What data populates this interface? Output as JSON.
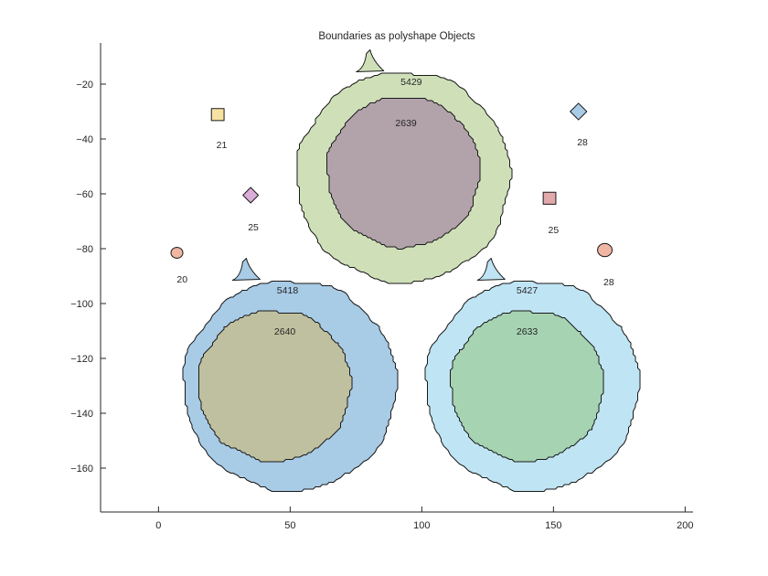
{
  "chart_data": {
    "type": "polygon-regions",
    "title": "Boundaries as polyshape Objects",
    "xlabel": "",
    "ylabel": "",
    "xlim": [
      -22,
      203
    ],
    "ylim": [
      -176,
      -5
    ],
    "xticks": [
      0,
      50,
      100,
      150,
      200
    ],
    "yticks": [
      -160,
      -140,
      -120,
      -100,
      -80,
      -60,
      -40,
      -20
    ],
    "grid": false,
    "colors": {
      "light_green": "#cfe0b9",
      "mauve": "#b2a2aa",
      "steel_blue": "#a8cbe6",
      "olive_tan": "#bfc09f",
      "light_cyan": "#bfe4f4",
      "green": "#a6d3b2",
      "pale_yellow": "#f8e2a3",
      "lilac": "#d9acd9",
      "pink": "#e2a9ad",
      "salmon": "#f0b6a3"
    },
    "regions": [
      {
        "label": "5429",
        "kind": "blob",
        "cx": 93,
        "cy": -54,
        "r": 40.5,
        "bump_x": 80,
        "color": "light_green",
        "label_xy": [
          96,
          -19
        ]
      },
      {
        "label": "2639",
        "kind": "blob",
        "cx": 93,
        "cy": -52,
        "r": 29,
        "color": "mauve",
        "label_xy": [
          94,
          -34
        ]
      },
      {
        "label": "5418",
        "kind": "blob",
        "cx": 50,
        "cy": -130,
        "r": 40.5,
        "bump_x": 33,
        "color": "steel_blue",
        "label_xy": [
          49,
          -95
        ]
      },
      {
        "label": "2640",
        "kind": "blob",
        "cx": 44,
        "cy": -130,
        "r": 29,
        "color": "olive_tan",
        "label_xy": [
          48,
          -110
        ]
      },
      {
        "label": "5427",
        "kind": "blob",
        "cx": 142,
        "cy": -130,
        "r": 40.5,
        "bump_x": 126,
        "color": "light_cyan",
        "label_xy": [
          140,
          -95
        ]
      },
      {
        "label": "2633",
        "kind": "blob",
        "cx": 140,
        "cy": -130,
        "r": 29,
        "color": "green",
        "label_xy": [
          140,
          -110
        ]
      },
      {
        "label": "21",
        "kind": "square",
        "cx": 22.5,
        "cy": -31,
        "r": 2.4,
        "color": "pale_yellow",
        "label_xy": [
          24,
          -42
        ]
      },
      {
        "label": "25",
        "kind": "diamond",
        "cx": 35,
        "cy": -60.5,
        "r": 2.8,
        "color": "lilac",
        "label_xy": [
          36,
          -72
        ]
      },
      {
        "label": "20",
        "kind": "round",
        "cx": 7,
        "cy": -81.5,
        "r": 2.3,
        "color": "salmon",
        "label_xy": [
          9,
          -91
        ]
      },
      {
        "label": "28",
        "kind": "diamond",
        "cx": 159.5,
        "cy": -30,
        "r": 3,
        "color": "steel_blue",
        "label_xy": [
          161,
          -41
        ]
      },
      {
        "label": "25",
        "kind": "square",
        "cx": 148.5,
        "cy": -61.5,
        "r": 2.4,
        "color": "pink",
        "label_xy": [
          150,
          -73
        ]
      },
      {
        "label": "28",
        "kind": "round",
        "cx": 169.5,
        "cy": -80.5,
        "r": 2.8,
        "color": "salmon",
        "label_xy": [
          171,
          -92
        ]
      }
    ]
  }
}
